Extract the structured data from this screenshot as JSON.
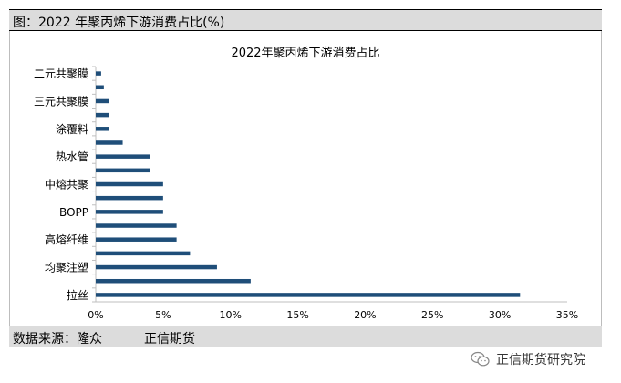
{
  "header": {
    "caption": "图：2022 年聚丙烯下游消费占比(%)"
  },
  "footer": {
    "source": "数据来源：隆众",
    "org": "正信期货"
  },
  "watermark": {
    "text": "正信期货研究院",
    "icon": "wechat-icon"
  },
  "colors": {
    "bar": "#1f4e79",
    "axis": "#bfbfbf",
    "panel": "#dcdcdc"
  },
  "chart_data": {
    "type": "bar",
    "orientation": "horizontal",
    "title": "2022年聚丙烯下游消费占比",
    "xlabel": "",
    "ylabel": "",
    "xlim": [
      0,
      35
    ],
    "x_ticks": [
      "0%",
      "5%",
      "10%",
      "15%",
      "20%",
      "25%",
      "30%",
      "35%"
    ],
    "categories": [
      "二元共聚膜",
      "",
      "三元共聚膜",
      "",
      "涂覆料",
      "",
      "热水管",
      "",
      "中熔共聚",
      "",
      "BOPP",
      "",
      "高熔纤维",
      "",
      "均聚注塑",
      "",
      "拉丝"
    ],
    "values": [
      0.4,
      0.6,
      1.0,
      1.0,
      1.0,
      2.0,
      4.0,
      4.0,
      5.0,
      5.0,
      5.0,
      6.0,
      6.0,
      7.0,
      9.0,
      11.5,
      31.5
    ],
    "grid": false,
    "legend": "none"
  }
}
